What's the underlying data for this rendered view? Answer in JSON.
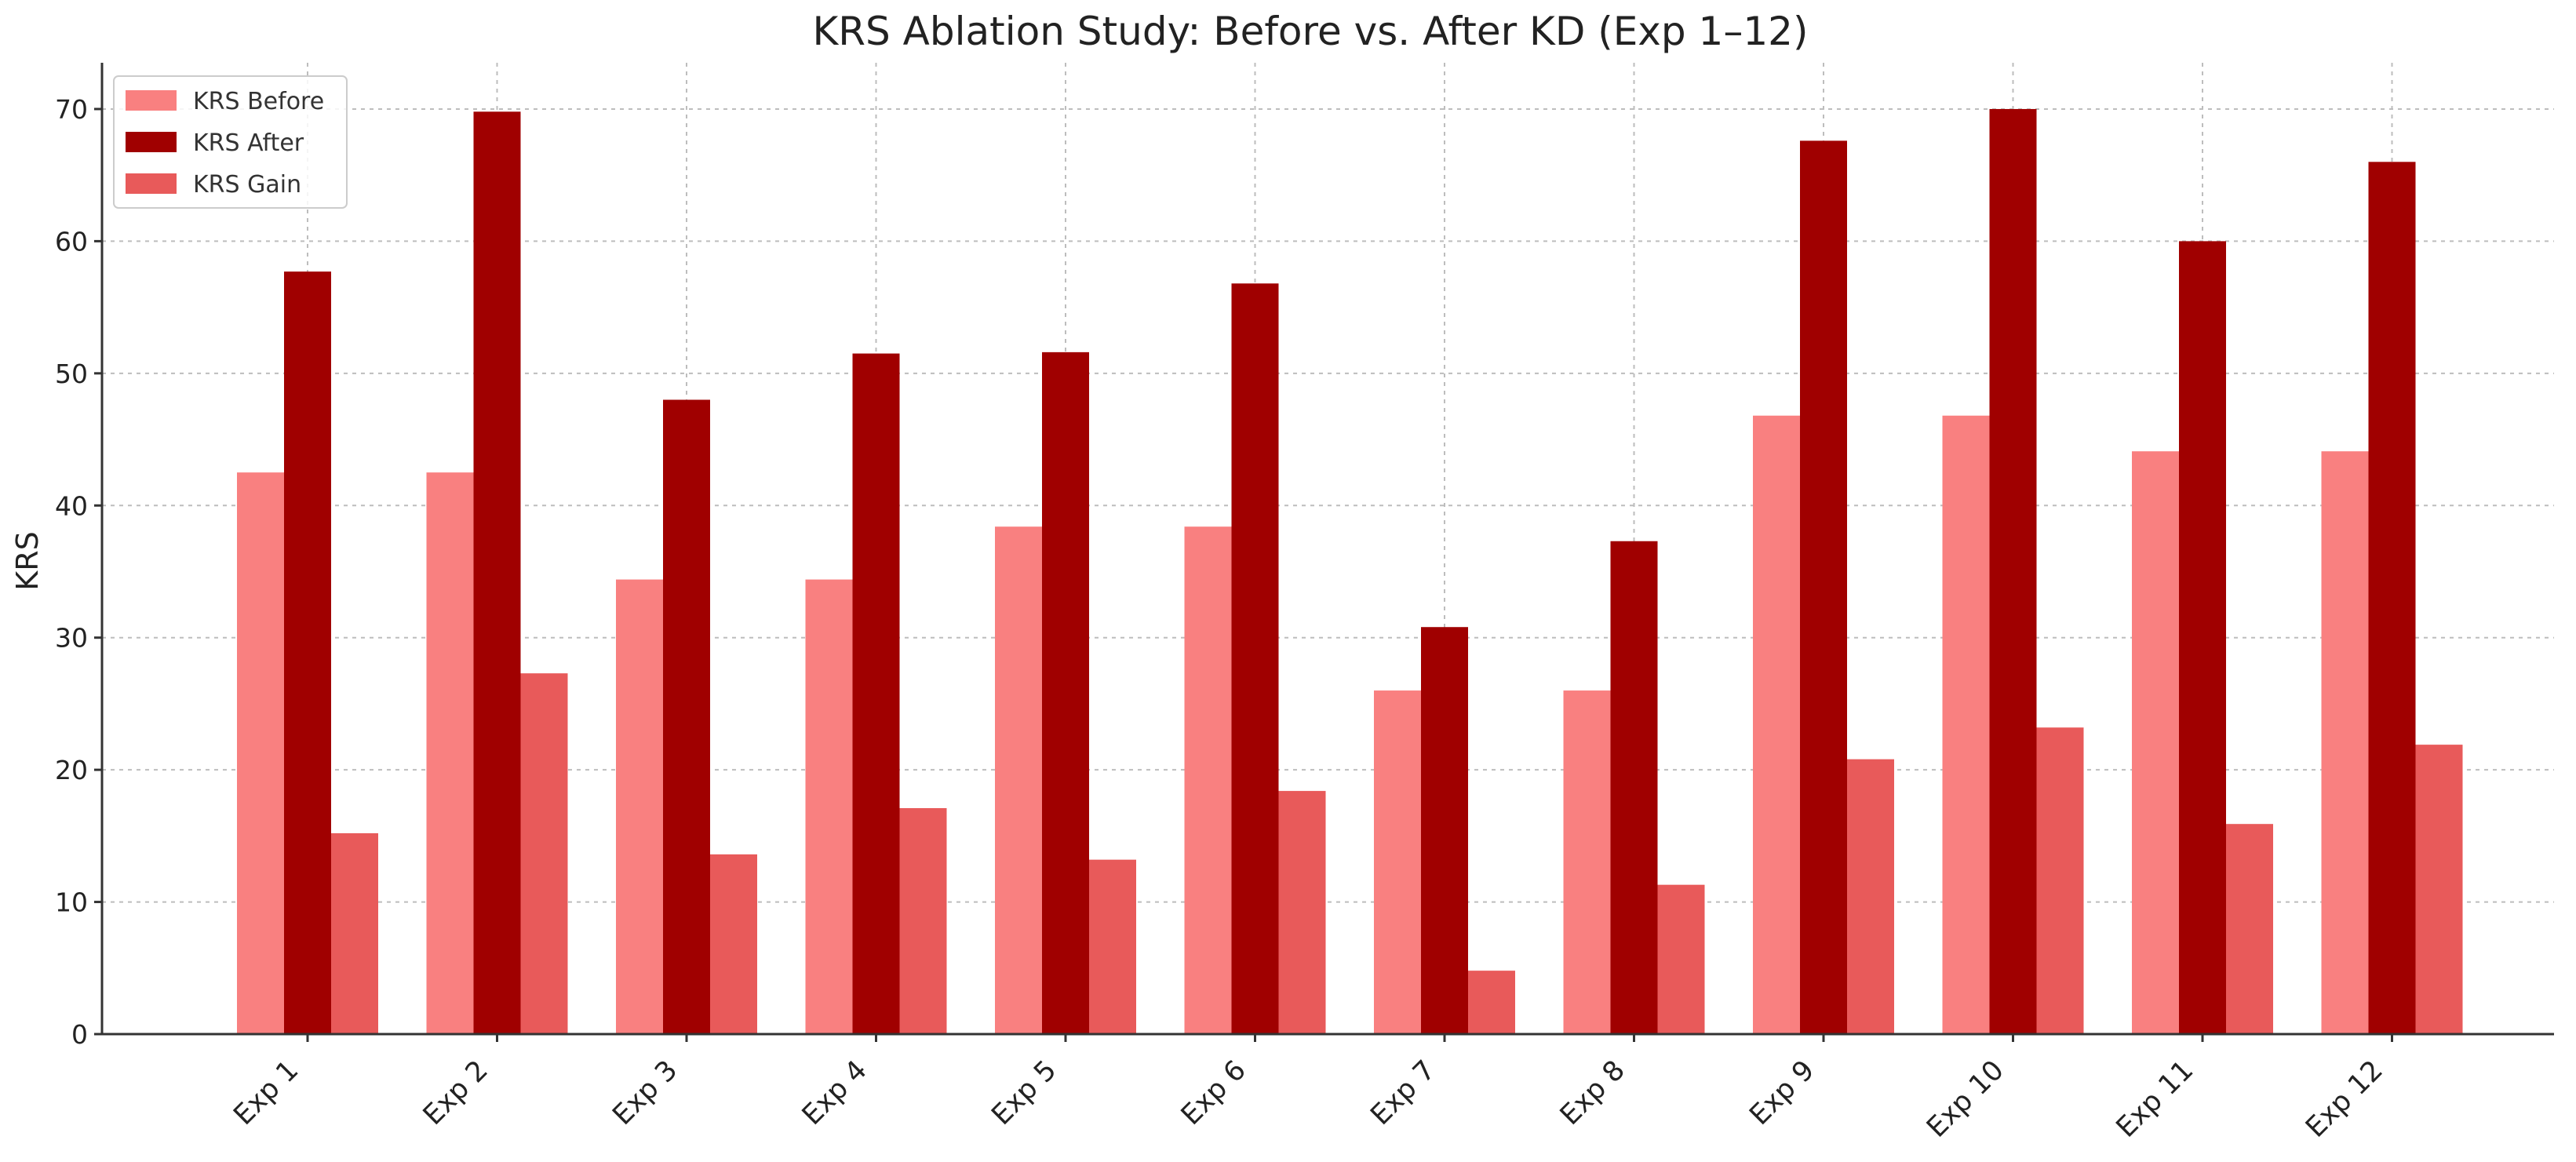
{
  "chart_data": {
    "type": "bar",
    "title": "KRS Ablation Study: Before vs. After KD (Exp 1–12)",
    "xlabel": "",
    "ylabel": "KRS",
    "ylim": [
      0,
      73.5
    ],
    "yticks": [
      0,
      10,
      20,
      30,
      40,
      50,
      60,
      70
    ],
    "grid": true,
    "legend_position": "top-left",
    "categories": [
      "Exp 1",
      "Exp 2",
      "Exp 3",
      "Exp 4",
      "Exp 5",
      "Exp 6",
      "Exp 7",
      "Exp 8",
      "Exp 9",
      "Exp 10",
      "Exp 11",
      "Exp 12"
    ],
    "series": [
      {
        "name": "KRS Before",
        "color": "#f98080",
        "values": [
          42.5,
          42.5,
          34.4,
          34.4,
          38.4,
          38.4,
          26.0,
          26.0,
          46.8,
          46.8,
          44.1,
          44.1
        ]
      },
      {
        "name": "KRS After",
        "color": "#a00000",
        "values": [
          57.7,
          69.8,
          48.0,
          51.5,
          51.6,
          56.8,
          30.8,
          37.3,
          67.6,
          70.0,
          60.0,
          66.0
        ]
      },
      {
        "name": "KRS Gain",
        "color": "#e85a5a",
        "values": [
          15.2,
          27.3,
          13.6,
          17.1,
          13.2,
          18.4,
          4.8,
          11.3,
          20.8,
          23.2,
          15.9,
          21.9
        ]
      }
    ]
  }
}
